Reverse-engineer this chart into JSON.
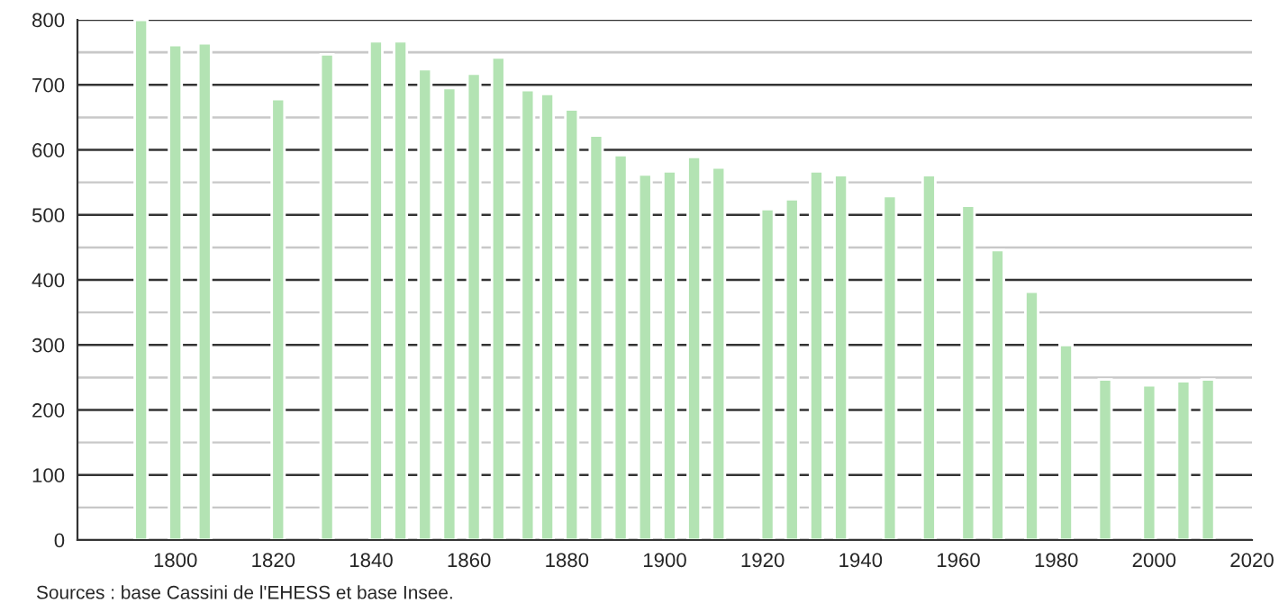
{
  "chart_data": {
    "type": "bar",
    "x": [
      1793,
      1800,
      1806,
      1821,
      1831,
      1841,
      1846,
      1851,
      1856,
      1861,
      1866,
      1872,
      1876,
      1881,
      1886,
      1891,
      1896,
      1901,
      1906,
      1911,
      1921,
      1926,
      1931,
      1936,
      1946,
      1954,
      1962,
      1968,
      1975,
      1982,
      1990,
      1999,
      2006,
      2011
    ],
    "values": [
      800,
      761,
      764,
      678,
      747,
      767,
      767,
      724,
      695,
      717,
      742,
      692,
      686,
      662,
      622,
      592,
      562,
      567,
      589,
      573,
      509,
      524,
      567,
      561,
      529,
      561,
      514,
      446,
      382,
      300,
      247,
      238,
      244,
      247
    ],
    "color": "#b3e3b3",
    "xlim": [
      1780,
      2020
    ],
    "xticks": [
      1800,
      1820,
      1840,
      1860,
      1880,
      1900,
      1920,
      1940,
      1960,
      1980,
      2000,
      2020
    ],
    "ylim": [
      0,
      800
    ],
    "yticks": [
      0,
      {
        "value": 50,
        "label": null
      },
      100,
      {
        "value": 150,
        "label": null
      },
      200,
      {
        "value": 250,
        "label": null
      },
      300,
      {
        "value": 350,
        "label": null
      },
      400,
      {
        "value": 450,
        "label": null
      },
      500,
      {
        "value": 550,
        "label": null
      },
      600,
      {
        "value": 650,
        "label": null
      },
      700,
      {
        "value": 750,
        "label": null
      },
      800
    ],
    "grid": "y",
    "annotations": [
      "Sources : base Cassini de l'EHESS et base Insee."
    ]
  }
}
